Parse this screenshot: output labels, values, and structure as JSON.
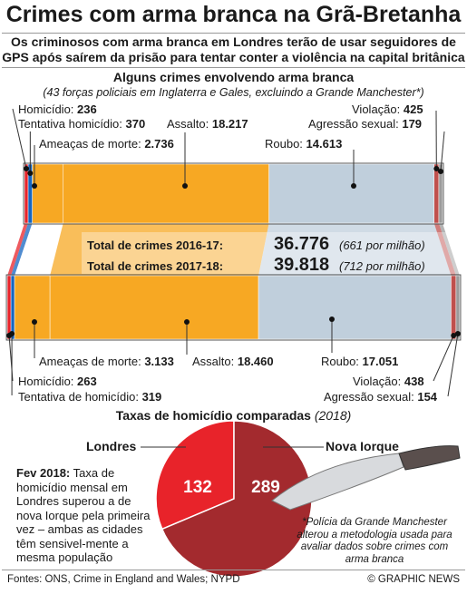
{
  "header": {
    "title": "Crimes com arma branca na Grã-Bretanha",
    "subtitle_line1": "Os criminosos com arma branca em Londres terão de usar seguidores de",
    "subtitle_line2": "GPS após saírem da prisão para tentar conter a violência na capital britânica"
  },
  "section1": {
    "title": "Alguns crimes envolvendo arma branca",
    "subtitle": "(43 forças policiais em Inglaterra e Gales, excluindo a Grande Manchester*)"
  },
  "colors": {
    "homicide": "#e8232a",
    "attempted": "#1565c0",
    "threats": "#ffffff",
    "assault": "#f7a823",
    "robbery": "#c0cfdc",
    "rape": "#c0504d",
    "sexual": "#9b9b9b",
    "pie_london": "#e8232a",
    "pie_ny": "#a32a2e"
  },
  "chart_data": [
    {
      "type": "bar",
      "stacked": true,
      "period": "2016-17",
      "categories": [
        "Homicídio",
        "Tentativa homicídio",
        "Ameaças de morte",
        "Assalto",
        "Roubo",
        "Violação",
        "Agressão sexual"
      ],
      "values": [
        236,
        370,
        2736,
        18217,
        14613,
        425,
        179
      ],
      "labels": {
        "homicide": "Homicídio: ",
        "homicide_v": "236",
        "attempted": "Tentativa homicídio: ",
        "attempted_v": "370",
        "threats": "Ameaças de morte: ",
        "threats_v": "2.736",
        "assault": "Assalto: ",
        "assault_v": "18.217",
        "robbery": "Roubo: ",
        "robbery_v": "14.613",
        "rape": "Violação: ",
        "rape_v": "425",
        "sexual": "Agressão sexual: ",
        "sexual_v": "179"
      },
      "total_label": "Total de crimes 2016-17:",
      "total": "36.776",
      "per_million": "(661 por milhão)"
    },
    {
      "type": "bar",
      "stacked": true,
      "period": "2017-18",
      "categories": [
        "Homicídio",
        "Tentativa de homicídio",
        "Ameaças de morte",
        "Assalto",
        "Roubo",
        "Violação",
        "Agressão sexual"
      ],
      "values": [
        263,
        319,
        3133,
        18460,
        17051,
        438,
        154
      ],
      "labels": {
        "homicide": "Homicídio: ",
        "homicide_v": "263",
        "attempted": "Tentativa de homicídio: ",
        "attempted_v": "319",
        "threats": "Ameaças de morte: ",
        "threats_v": "3.133",
        "assault": "Assalto: ",
        "assault_v": "18.460",
        "robbery": "Roubo: ",
        "robbery_v": "17.051",
        "rape": "Violação: ",
        "rape_v": "438",
        "sexual": "Agressão sexual: ",
        "sexual_v": "154"
      },
      "total_label": "Total de crimes 2017-18:",
      "total": "39.818",
      "per_million": "(712 por milhão)"
    },
    {
      "type": "pie",
      "title": "Taxas de homicídio comparadas",
      "year": "(2018)",
      "categories": [
        "Londres",
        "Nova Iorque"
      ],
      "values": [
        132,
        289
      ]
    }
  ],
  "note": {
    "bold": "Fev 2018:",
    "text": " Taxa de homicídio mensal em Londres superou a de nova Iorque pela primeira vez – ambas as cidades têm sensivel-mente a mesma população"
  },
  "footnote": "*Polícia da Grande Manchester alterou a metodologia usada para avaliar dados sobre crimes com arma branca",
  "footer": {
    "sources": "Fontes: ONS, Crime in England and Wales; NYPD",
    "copyright": "© GRAPHIC NEWS"
  }
}
